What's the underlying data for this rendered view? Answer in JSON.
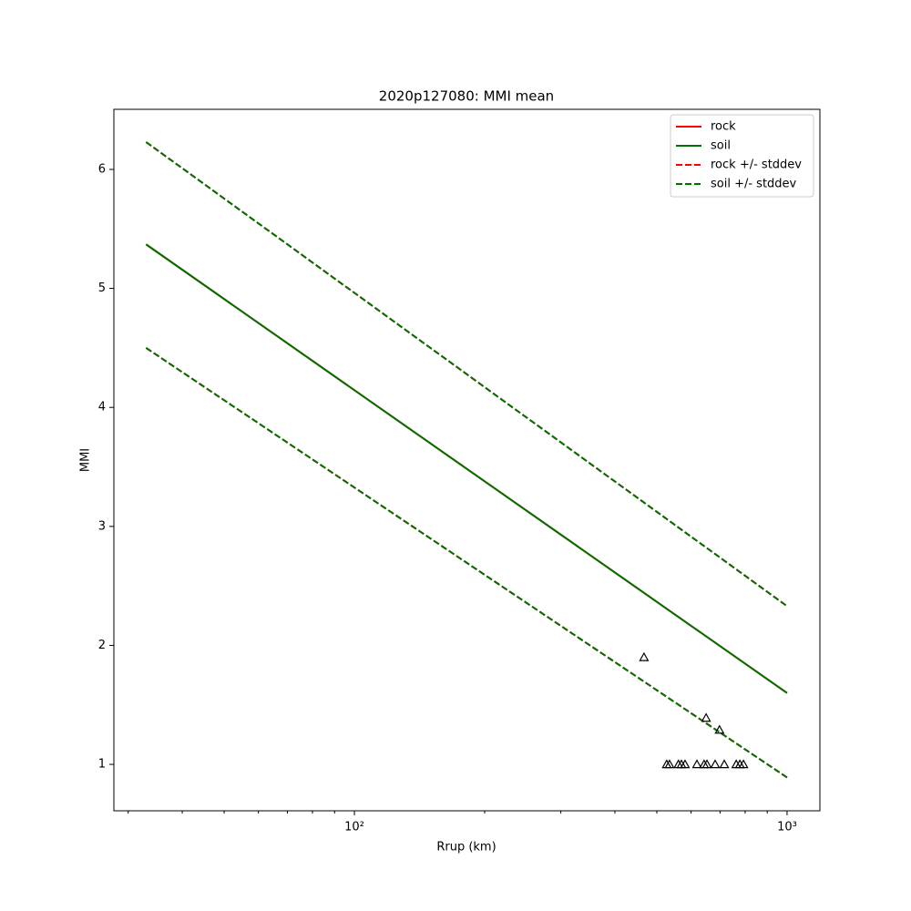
{
  "chart_data": {
    "type": "line",
    "title": "2020p127080: MMI mean",
    "xlabel": "Rrup (km)",
    "ylabel": "MMI",
    "xscale": "log",
    "xlim": [
      27.8,
      1191
    ],
    "ylim": [
      0.61,
      6.505
    ],
    "xticks": [
      {
        "value": 100,
        "label": "10²"
      },
      {
        "value": 1000,
        "label": "10³"
      }
    ],
    "xminorticks": [
      30,
      40,
      50,
      60,
      70,
      80,
      90,
      200,
      300,
      400,
      500,
      600,
      700,
      800,
      900
    ],
    "yticks": [
      1,
      2,
      3,
      4,
      5,
      6
    ],
    "legend": "upper right",
    "x": [
      33,
      1000
    ],
    "series": [
      {
        "name": "rock",
        "color": "#ff0000",
        "style": "solid",
        "values": [
          5.37,
          1.6
        ]
      },
      {
        "name": "soil",
        "color": "#007000",
        "style": "solid",
        "values": [
          5.37,
          1.6
        ]
      },
      {
        "name": "rock +/- stddev",
        "color": "#ff0000",
        "style": "dashed",
        "upper": [
          6.23,
          2.33
        ],
        "lower": [
          4.5,
          0.89
        ]
      },
      {
        "name": "soil +/- stddev",
        "color": "#007000",
        "style": "dashed",
        "upper": [
          6.23,
          2.33
        ],
        "lower": [
          4.5,
          0.89
        ]
      }
    ],
    "points": {
      "marker": "triangle",
      "color": "#000000",
      "x": [
        467,
        650,
        698,
        527,
        535,
        561,
        570,
        581,
        619,
        643,
        653,
        682,
        716,
        763,
        778,
        793
      ],
      "values": [
        1.9,
        1.39,
        1.29,
        1,
        1,
        1,
        1,
        1,
        1,
        1,
        1,
        1,
        1,
        1,
        1,
        1
      ]
    }
  }
}
